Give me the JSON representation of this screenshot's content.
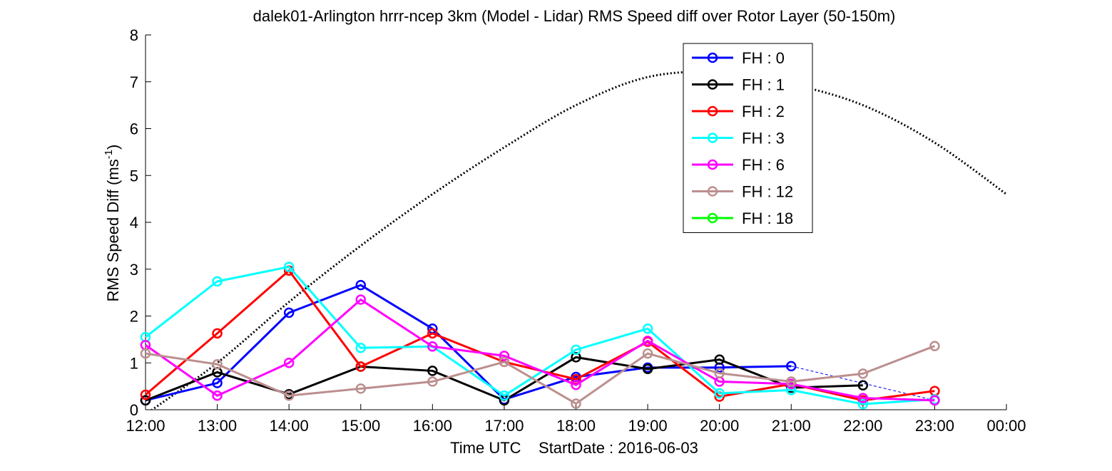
{
  "chart_data": {
    "type": "line",
    "title": "dalek01-Arlington hrrr-ncep 3km (Model - Lidar) RMS Speed diff over Rotor Layer (50-150m)",
    "xlabel": "Time UTC    StartDate : 2016-06-03",
    "ylabel_main": "RMS Speed Diff (ms",
    "ylabel_sup": "-1",
    "ylabel_end": ")",
    "categories": [
      "12:00",
      "13:00",
      "14:00",
      "15:00",
      "16:00",
      "17:00",
      "18:00",
      "19:00",
      "20:00",
      "21:00",
      "22:00",
      "23:00",
      "00:00"
    ],
    "yticks": [
      "0",
      "1",
      "2",
      "3",
      "4",
      "5",
      "6",
      "7",
      "8"
    ],
    "ylim": [
      0,
      8
    ],
    "grid": false,
    "legend_position": "top-right",
    "series": [
      {
        "name": "FH : 0",
        "color": "#0000ff",
        "values": [
          0.2,
          0.57,
          2.07,
          2.66,
          1.73,
          0.22,
          0.7,
          0.9,
          0.9,
          0.93,
          null,
          0.2,
          null
        ]
      },
      {
        "name": "FH : 1",
        "color": "#000000",
        "values": [
          0.2,
          0.8,
          0.33,
          0.92,
          0.83,
          0.2,
          1.12,
          0.87,
          1.07,
          0.47,
          0.52,
          null,
          null
        ]
      },
      {
        "name": "FH : 2",
        "color": "#ff0000",
        "values": [
          0.32,
          1.63,
          2.97,
          0.92,
          1.63,
          1.02,
          0.65,
          1.45,
          0.28,
          0.55,
          0.2,
          0.4,
          null
        ]
      },
      {
        "name": "FH : 3",
        "color": "#00ffff",
        "values": [
          1.55,
          2.74,
          3.05,
          1.32,
          1.35,
          0.3,
          1.28,
          1.73,
          0.35,
          0.42,
          0.12,
          0.22,
          null
        ]
      },
      {
        "name": "FH : 6",
        "color": "#ff00ff",
        "values": [
          1.38,
          0.3,
          1.0,
          2.35,
          1.35,
          1.15,
          0.53,
          1.47,
          0.6,
          0.55,
          0.25,
          0.2,
          null
        ]
      },
      {
        "name": "FH : 12",
        "color": "#bc8f8f",
        "values": [
          1.2,
          0.97,
          0.3,
          0.45,
          0.6,
          1.02,
          0.13,
          1.2,
          0.78,
          0.6,
          0.77,
          1.36,
          null
        ]
      },
      {
        "name": "FH : 18",
        "color": "#00ff00",
        "values": [
          null,
          null,
          null,
          null,
          null,
          null,
          null,
          null,
          null,
          null,
          null,
          null,
          null
        ]
      }
    ],
    "dashed_link": {
      "series": "FH : 0",
      "from": "21:00",
      "to": "23:00",
      "values": [
        0.93,
        0.2
      ]
    },
    "dotted_curve": {
      "x": [
        "12:00",
        "13:00",
        "14:00",
        "15:00",
        "16:00",
        "17:00",
        "18:00",
        "19:00",
        "20:00",
        "21:00",
        "22:00",
        "23:00",
        "00:00"
      ],
      "values": [
        -0.1,
        1.0,
        2.3,
        3.5,
        4.6,
        5.6,
        6.5,
        7.1,
        7.2,
        6.95,
        6.5,
        5.7,
        4.6
      ]
    }
  }
}
